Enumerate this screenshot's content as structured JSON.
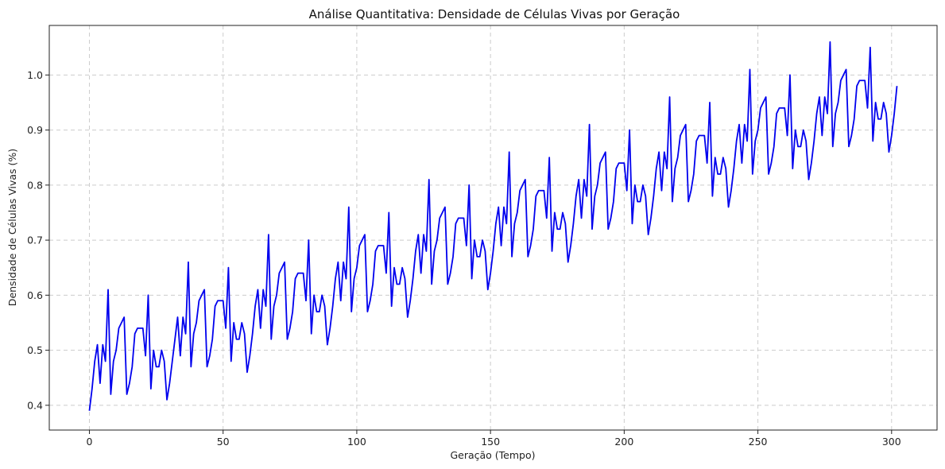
{
  "chart_data": {
    "type": "line",
    "title": "Análise Quantitativa: Densidade de Células Vivas por Geração",
    "xlabel": "Geração (Tempo)",
    "ylabel": "Densidade de Células Vivas (%)",
    "xlim": [
      -15,
      317
    ],
    "ylim": [
      0.355,
      1.09
    ],
    "xticks": [
      0,
      50,
      100,
      150,
      200,
      250,
      300
    ],
    "xtick_labels": [
      "0",
      "50",
      "100",
      "150",
      "200",
      "250",
      "300"
    ],
    "yticks": [
      0.4,
      0.5,
      0.6,
      0.7,
      0.8,
      0.9,
      1.0
    ],
    "ytick_labels": [
      "0.4",
      "0.5",
      "0.6",
      "0.7",
      "0.8",
      "0.9",
      "1.0"
    ],
    "grid": true,
    "line_color": "#0000ee",
    "series": [
      {
        "x_start": 0,
        "x_step": 1,
        "values": [
          0.39,
          0.43,
          0.48,
          0.51,
          0.44,
          0.51,
          0.48,
          0.61,
          0.42,
          0.48,
          0.5,
          0.54,
          0.55,
          0.56,
          0.42,
          0.44,
          0.47,
          0.53,
          0.54,
          0.54,
          0.54,
          0.49,
          0.6,
          0.43,
          0.5,
          0.47,
          0.47,
          0.5,
          0.48,
          0.41,
          0.44,
          0.48,
          0.52,
          0.56,
          0.49,
          0.56,
          0.53,
          0.66,
          0.47,
          0.53,
          0.55,
          0.59,
          0.6,
          0.61,
          0.47,
          0.49,
          0.52,
          0.58,
          0.59,
          0.59,
          0.59,
          0.54,
          0.65,
          0.48,
          0.55,
          0.52,
          0.52,
          0.55,
          0.53,
          0.46,
          0.49,
          0.53,
          0.58,
          0.61,
          0.54,
          0.61,
          0.58,
          0.71,
          0.52,
          0.58,
          0.6,
          0.64,
          0.65,
          0.66,
          0.52,
          0.54,
          0.57,
          0.63,
          0.64,
          0.64,
          0.64,
          0.59,
          0.7,
          0.53,
          0.6,
          0.57,
          0.57,
          0.6,
          0.58,
          0.51,
          0.54,
          0.58,
          0.63,
          0.66,
          0.59,
          0.66,
          0.63,
          0.76,
          0.57,
          0.63,
          0.65,
          0.69,
          0.7,
          0.71,
          0.57,
          0.59,
          0.62,
          0.68,
          0.69,
          0.69,
          0.69,
          0.64,
          0.75,
          0.58,
          0.65,
          0.62,
          0.62,
          0.65,
          0.63,
          0.56,
          0.59,
          0.63,
          0.68,
          0.71,
          0.64,
          0.71,
          0.68,
          0.81,
          0.62,
          0.68,
          0.7,
          0.74,
          0.75,
          0.76,
          0.62,
          0.64,
          0.67,
          0.73,
          0.74,
          0.74,
          0.74,
          0.69,
          0.8,
          0.63,
          0.7,
          0.67,
          0.67,
          0.7,
          0.68,
          0.61,
          0.64,
          0.68,
          0.73,
          0.76,
          0.69,
          0.76,
          0.73,
          0.86,
          0.67,
          0.73,
          0.75,
          0.79,
          0.8,
          0.81,
          0.67,
          0.69,
          0.72,
          0.78,
          0.79,
          0.79,
          0.79,
          0.74,
          0.85,
          0.68,
          0.75,
          0.72,
          0.72,
          0.75,
          0.73,
          0.66,
          0.69,
          0.73,
          0.78,
          0.81,
          0.74,
          0.81,
          0.78,
          0.91,
          0.72,
          0.78,
          0.8,
          0.84,
          0.85,
          0.86,
          0.72,
          0.74,
          0.77,
          0.83,
          0.84,
          0.84,
          0.84,
          0.79,
          0.9,
          0.73,
          0.8,
          0.77,
          0.77,
          0.8,
          0.78,
          0.71,
          0.74,
          0.78,
          0.83,
          0.86,
          0.79,
          0.86,
          0.83,
          0.96,
          0.77,
          0.83,
          0.85,
          0.89,
          0.9,
          0.91,
          0.77,
          0.79,
          0.82,
          0.88,
          0.89,
          0.89,
          0.89,
          0.84,
          0.95,
          0.78,
          0.85,
          0.82,
          0.82,
          0.85,
          0.83,
          0.76,
          0.79,
          0.83,
          0.88,
          0.91,
          0.84,
          0.91,
          0.88,
          1.01,
          0.82,
          0.88,
          0.9,
          0.94,
          0.95,
          0.96,
          0.82,
          0.84,
          0.87,
          0.93,
          0.94,
          0.94,
          0.94,
          0.89,
          1.0,
          0.83,
          0.9,
          0.87,
          0.87,
          0.9,
          0.88,
          0.81,
          0.84,
          0.88,
          0.93,
          0.96,
          0.89,
          0.96,
          0.93,
          1.06,
          0.87,
          0.93,
          0.95,
          0.99,
          1.0,
          1.01,
          0.87,
          0.89,
          0.92,
          0.98,
          0.99,
          0.99,
          0.99,
          0.94,
          1.05,
          0.88,
          0.95,
          0.92,
          0.92,
          0.95,
          0.93,
          0.86,
          0.89,
          0.93,
          0.98
        ]
      }
    ]
  }
}
